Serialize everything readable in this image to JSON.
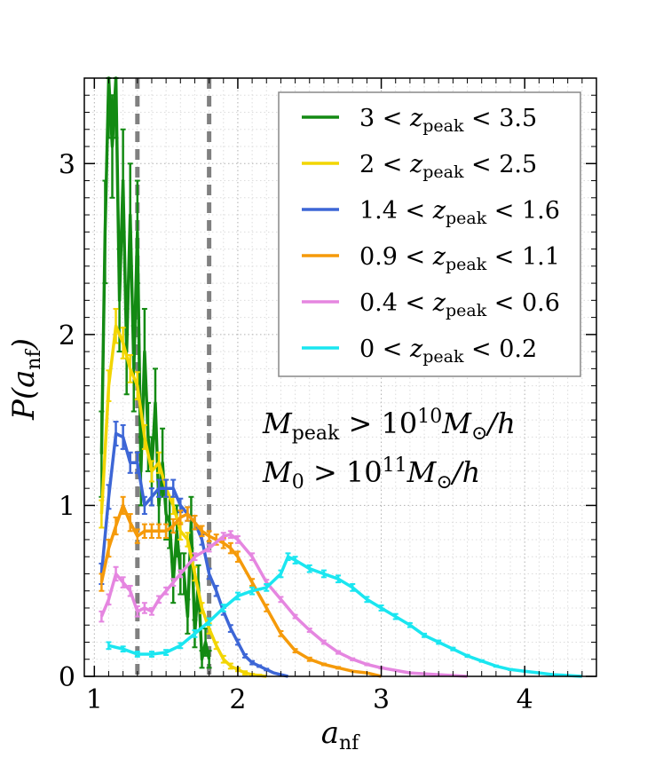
{
  "chart_data": {
    "type": "line",
    "xlabel": "a_nf",
    "ylabel": "P(a_nf)",
    "xlim": [
      0.93,
      4.5
    ],
    "ylim": [
      0,
      3.5
    ],
    "xticks": [
      1,
      2,
      3,
      4
    ],
    "yticks": [
      0,
      1,
      2,
      3
    ],
    "grid": true,
    "vlines": [
      1.3,
      1.8
    ],
    "legend_position": "top-right",
    "annotations": [
      {
        "var": "M",
        "sub": "peak",
        "rel": ">",
        "base": "10",
        "exp": "10",
        "unit": "M",
        "unit_sub": "⊙",
        "tail": "/h"
      },
      {
        "var": "M",
        "sub": "0",
        "rel": ">",
        "base": "10",
        "exp": "11",
        "unit": "M",
        "unit_sub": "⊙",
        "tail": "/h"
      }
    ],
    "series": [
      {
        "name": "3 < z_peak < 3.5",
        "lo": "3",
        "hi": "3.5",
        "color": "#138a13",
        "x": [
          1.05,
          1.075,
          1.1,
          1.125,
          1.15,
          1.175,
          1.2,
          1.225,
          1.25,
          1.275,
          1.3,
          1.325,
          1.35,
          1.375,
          1.4,
          1.425,
          1.45,
          1.475,
          1.5,
          1.525,
          1.55,
          1.575,
          1.6,
          1.625,
          1.65,
          1.675,
          1.7,
          1.725,
          1.75,
          1.775,
          1.8
        ],
        "y": [
          1.3,
          2.6,
          3.5,
          3.1,
          3.5,
          2.2,
          2.9,
          1.9,
          2.7,
          1.8,
          2.6,
          1.2,
          1.9,
          1.4,
          1.2,
          1.6,
          1.0,
          1.25,
          0.95,
          0.9,
          0.55,
          0.85,
          0.6,
          0.6,
          0.35,
          0.9,
          0.25,
          0.55,
          0.1,
          0.2,
          0.1
        ],
        "err": [
          0.25,
          0.3,
          0.35,
          0.3,
          0.35,
          0.3,
          0.3,
          0.25,
          0.3,
          0.25,
          0.3,
          0.2,
          0.25,
          0.2,
          0.2,
          0.2,
          0.15,
          0.2,
          0.15,
          0.15,
          0.12,
          0.15,
          0.12,
          0.12,
          0.1,
          0.15,
          0.08,
          0.1,
          0.05,
          0.08,
          0.05
        ]
      },
      {
        "name": "2 < z_peak < 2.5",
        "lo": "2",
        "hi": "2.5",
        "color": "#f2d500",
        "x": [
          1.05,
          1.1,
          1.15,
          1.2,
          1.25,
          1.3,
          1.35,
          1.4,
          1.45,
          1.5,
          1.55,
          1.6,
          1.65,
          1.7,
          1.75,
          1.8,
          1.85,
          1.9,
          1.95,
          2.0,
          2.05,
          2.1,
          2.15,
          2.2
        ],
        "y": [
          0.95,
          1.7,
          2.05,
          1.95,
          1.8,
          1.7,
          1.4,
          1.2,
          1.25,
          1.1,
          1.0,
          0.85,
          0.8,
          0.6,
          0.4,
          0.28,
          0.18,
          0.1,
          0.06,
          0.04,
          0.02,
          0.01,
          0.005,
          0.0
        ],
        "err": [
          0.08,
          0.09,
          0.1,
          0.09,
          0.08,
          0.08,
          0.07,
          0.06,
          0.06,
          0.05,
          0.05,
          0.05,
          0.04,
          0.04,
          0.03,
          0.03,
          0.02,
          0.02,
          0.015,
          0.01,
          0.01,
          0.005,
          0.005,
          0.0
        ]
      },
      {
        "name": "1.4 < z_peak < 1.6",
        "lo": "1.4",
        "hi": "1.6",
        "color": "#3d66d6",
        "x": [
          1.05,
          1.1,
          1.15,
          1.2,
          1.25,
          1.3,
          1.35,
          1.4,
          1.45,
          1.5,
          1.55,
          1.6,
          1.65,
          1.7,
          1.75,
          1.8,
          1.85,
          1.9,
          1.95,
          2.0,
          2.05,
          2.1,
          2.15,
          2.2,
          2.25,
          2.3,
          2.35
        ],
        "y": [
          0.6,
          1.05,
          1.42,
          1.4,
          1.25,
          1.25,
          1.0,
          1.05,
          1.1,
          1.1,
          1.1,
          1.0,
          0.95,
          0.9,
          0.8,
          0.6,
          0.5,
          0.38,
          0.28,
          0.2,
          0.12,
          0.08,
          0.06,
          0.04,
          0.02,
          0.01,
          0.0
        ],
        "err": [
          0.06,
          0.07,
          0.07,
          0.07,
          0.06,
          0.06,
          0.05,
          0.05,
          0.05,
          0.05,
          0.05,
          0.04,
          0.04,
          0.04,
          0.03,
          0.03,
          0.03,
          0.02,
          0.02,
          0.015,
          0.01,
          0.01,
          0.005,
          0.005,
          0.0,
          0.0,
          0.0
        ]
      },
      {
        "name": "0.9 < z_peak < 1.1",
        "lo": "0.9",
        "hi": "1.1",
        "color": "#f59a0a",
        "x": [
          1.05,
          1.1,
          1.15,
          1.2,
          1.25,
          1.3,
          1.35,
          1.4,
          1.45,
          1.5,
          1.55,
          1.6,
          1.65,
          1.7,
          1.75,
          1.8,
          1.85,
          1.9,
          1.95,
          2.0,
          2.1,
          2.2,
          2.3,
          2.4,
          2.5,
          2.6,
          2.7,
          2.8,
          2.9,
          3.0
        ],
        "y": [
          0.55,
          0.75,
          0.88,
          1.0,
          0.9,
          0.82,
          0.85,
          0.85,
          0.85,
          0.85,
          0.88,
          0.93,
          0.95,
          0.9,
          0.85,
          0.82,
          0.8,
          0.78,
          0.75,
          0.7,
          0.55,
          0.4,
          0.25,
          0.15,
          0.1,
          0.07,
          0.05,
          0.03,
          0.02,
          0.0
        ],
        "err": [
          0.05,
          0.05,
          0.05,
          0.05,
          0.05,
          0.04,
          0.04,
          0.04,
          0.04,
          0.04,
          0.04,
          0.04,
          0.04,
          0.04,
          0.03,
          0.03,
          0.03,
          0.03,
          0.03,
          0.03,
          0.02,
          0.02,
          0.015,
          0.01,
          0.01,
          0.005,
          0.005,
          0.0,
          0.0,
          0.0
        ]
      },
      {
        "name": "0.4 < z_peak < 0.6",
        "lo": "0.4",
        "hi": "0.6",
        "color": "#e586e0",
        "x": [
          1.05,
          1.1,
          1.15,
          1.2,
          1.25,
          1.3,
          1.35,
          1.4,
          1.45,
          1.5,
          1.55,
          1.6,
          1.7,
          1.8,
          1.9,
          1.95,
          2.0,
          2.1,
          2.2,
          2.3,
          2.4,
          2.5,
          2.6,
          2.7,
          2.8,
          2.9,
          3.0,
          3.2,
          3.4,
          3.6
        ],
        "y": [
          0.35,
          0.45,
          0.6,
          0.55,
          0.5,
          0.38,
          0.4,
          0.38,
          0.45,
          0.5,
          0.55,
          0.6,
          0.7,
          0.75,
          0.82,
          0.83,
          0.8,
          0.7,
          0.55,
          0.45,
          0.35,
          0.27,
          0.2,
          0.14,
          0.1,
          0.07,
          0.05,
          0.02,
          0.01,
          0.0
        ],
        "err": [
          0.03,
          0.03,
          0.04,
          0.03,
          0.03,
          0.03,
          0.03,
          0.02,
          0.02,
          0.02,
          0.02,
          0.02,
          0.02,
          0.02,
          0.02,
          0.02,
          0.02,
          0.02,
          0.015,
          0.015,
          0.01,
          0.01,
          0.01,
          0.008,
          0.006,
          0.005,
          0.004,
          0.002,
          0.001,
          0.0
        ]
      },
      {
        "name": "0 < z_peak < 0.2",
        "lo": "0",
        "hi": "0.2",
        "color": "#1ae6f0",
        "x": [
          1.1,
          1.2,
          1.3,
          1.4,
          1.5,
          1.6,
          1.7,
          1.8,
          1.9,
          2.0,
          2.1,
          2.2,
          2.3,
          2.35,
          2.4,
          2.5,
          2.6,
          2.7,
          2.8,
          2.9,
          3.0,
          3.1,
          3.2,
          3.3,
          3.4,
          3.5,
          3.6,
          3.7,
          3.8,
          3.9,
          4.0,
          4.1,
          4.2,
          4.3,
          4.4
        ],
        "y": [
          0.18,
          0.16,
          0.13,
          0.13,
          0.14,
          0.18,
          0.25,
          0.32,
          0.4,
          0.47,
          0.5,
          0.52,
          0.6,
          0.7,
          0.68,
          0.63,
          0.6,
          0.57,
          0.52,
          0.45,
          0.4,
          0.35,
          0.3,
          0.24,
          0.2,
          0.16,
          0.12,
          0.09,
          0.06,
          0.04,
          0.03,
          0.02,
          0.01,
          0.005,
          0.0
        ],
        "err": [
          0.02,
          0.015,
          0.015,
          0.015,
          0.015,
          0.015,
          0.02,
          0.02,
          0.02,
          0.02,
          0.02,
          0.02,
          0.02,
          0.02,
          0.02,
          0.02,
          0.02,
          0.02,
          0.02,
          0.015,
          0.015,
          0.015,
          0.012,
          0.01,
          0.01,
          0.008,
          0.006,
          0.005,
          0.004,
          0.003,
          0.002,
          0.001,
          0.001,
          0.0,
          0.0
        ]
      }
    ]
  }
}
